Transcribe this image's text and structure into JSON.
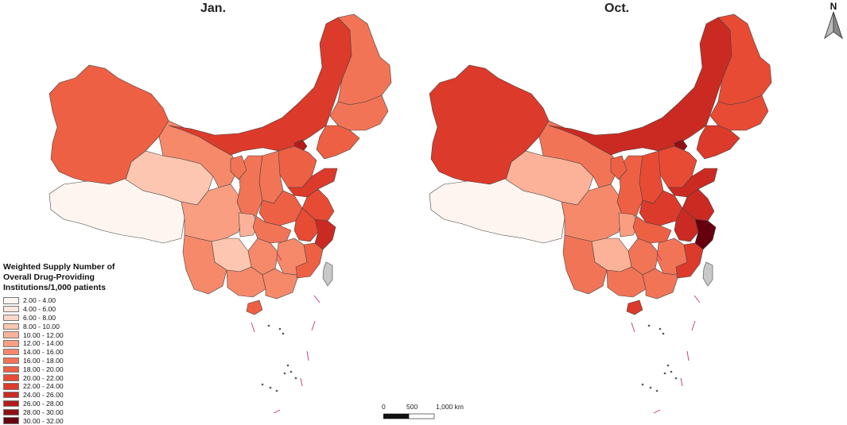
{
  "panels": [
    {
      "title": "Jan."
    },
    {
      "title": "Oct."
    }
  ],
  "legend": {
    "title": "Weighted Supply Number of Overall Drug-Providing Institutions/1,000 patients",
    "classes": [
      {
        "label": "2.00 - 4.00",
        "color": "#fff5f0"
      },
      {
        "label": "4.00 - 6.00",
        "color": "#fee8de"
      },
      {
        "label": "6.00 - 8.00",
        "color": "#fdd8c8"
      },
      {
        "label": "8.00 - 10.00",
        "color": "#fcc6b0"
      },
      {
        "label": "10.00 - 12.00",
        "color": "#fbb299"
      },
      {
        "label": "12.00 - 14.00",
        "color": "#f99e81"
      },
      {
        "label": "14.00 - 16.00",
        "color": "#f6896a"
      },
      {
        "label": "16.00 - 18.00",
        "color": "#f27456"
      },
      {
        "label": "18.00 - 20.00",
        "color": "#ee6044"
      },
      {
        "label": "20.00 - 22.00",
        "color": "#e74b34"
      },
      {
        "label": "22.00 - 24.00",
        "color": "#dc3a2a"
      },
      {
        "label": "24.00 - 26.00",
        "color": "#cb2a22"
      },
      {
        "label": "26.00 - 28.00",
        "color": "#b31c1b"
      },
      {
        "label": "28.00 - 30.00",
        "color": "#8f1015"
      },
      {
        "label": "30.00 - 32.00",
        "color": "#67000d"
      }
    ]
  },
  "scalebar": {
    "ticks": [
      "0",
      "500",
      "1,000 km"
    ]
  },
  "north_arrow": {
    "label": "N",
    "icon": "north-arrow-icon"
  },
  "regions": [
    "xinjiang",
    "tibet",
    "qinghai",
    "gansu",
    "inner-mongolia",
    "heilongjiang",
    "jilin",
    "liaoning",
    "beijing",
    "hebei",
    "shanxi",
    "shaanxi",
    "ningxia",
    "henan",
    "shandong",
    "jiangsu",
    "anhui",
    "zhejiang",
    "sichuan",
    "chongqing",
    "hubei",
    "hunan",
    "jiangxi",
    "fujian",
    "guizhou",
    "yunnan",
    "guangxi",
    "guangdong",
    "hainan",
    "taiwan"
  ],
  "map_values": {
    "jan": {
      "xinjiang": 19,
      "tibet": 3,
      "qinghai": 9,
      "gansu": 15,
      "inner-mongolia": 23,
      "heilongjiang": 17,
      "jilin": 17,
      "liaoning": 19,
      "beijing": 27,
      "hebei": 19,
      "shanxi": 17,
      "shaanxi": 17,
      "ningxia": 17,
      "henan": 19,
      "shandong": 23,
      "jiangsu": 21,
      "anhui": 21,
      "zhejiang": 25,
      "sichuan": 13,
      "chongqing": 11,
      "hubei": 17,
      "hunan": 15,
      "jiangxi": 15,
      "fujian": 19,
      "guizhou": 9,
      "yunnan": 15,
      "guangxi": 15,
      "guangdong": 15,
      "hainan": 19
    },
    "oct": {
      "xinjiang": 23,
      "tibet": 3,
      "qinghai": 11,
      "gansu": 17,
      "inner-mongolia": 25,
      "heilongjiang": 21,
      "jilin": 21,
      "liaoning": 23,
      "beijing": 29,
      "hebei": 21,
      "shanxi": 21,
      "shaanxi": 19,
      "ningxia": 19,
      "henan": 23,
      "shandong": 25,
      "jiangsu": 25,
      "anhui": 25,
      "zhejiang": 31,
      "sichuan": 15,
      "chongqing": 13,
      "hubei": 19,
      "hunan": 17,
      "jiangxi": 17,
      "fujian": 23,
      "guizhou": 11,
      "yunnan": 17,
      "guangxi": 17,
      "guangdong": 17,
      "hainan": 23
    }
  }
}
